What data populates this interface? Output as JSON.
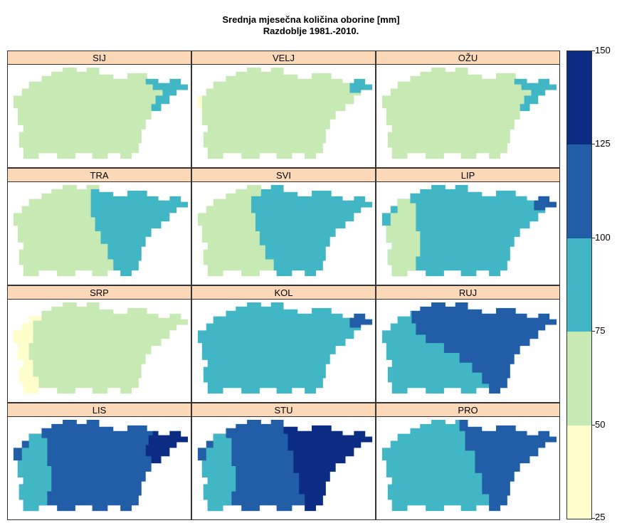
{
  "title_line1": "Srednja mjesečna količina oborine [mm]",
  "title_line2": "Razdoblje 1981.-2010.",
  "panels": [
    "SIJ",
    "VELJ",
    "OŽU",
    "TRA",
    "SVI",
    "LIP",
    "SRP",
    "KOL",
    "RUJ",
    "LIS",
    "STU",
    "PRO"
  ],
  "legend": {
    "ticks": [
      "150",
      "125",
      "100",
      "75",
      "50",
      "25"
    ],
    "classes": [
      {
        "range": "25-50",
        "color": "#ffffcc"
      },
      {
        "range": "50-75",
        "color": "#c7e9b4"
      },
      {
        "range": "75-100",
        "color": "#41b6c4"
      },
      {
        "range": "100-125",
        "color": "#225ea8"
      },
      {
        "range": "125-150",
        "color": "#0c2c84"
      }
    ]
  }
}
